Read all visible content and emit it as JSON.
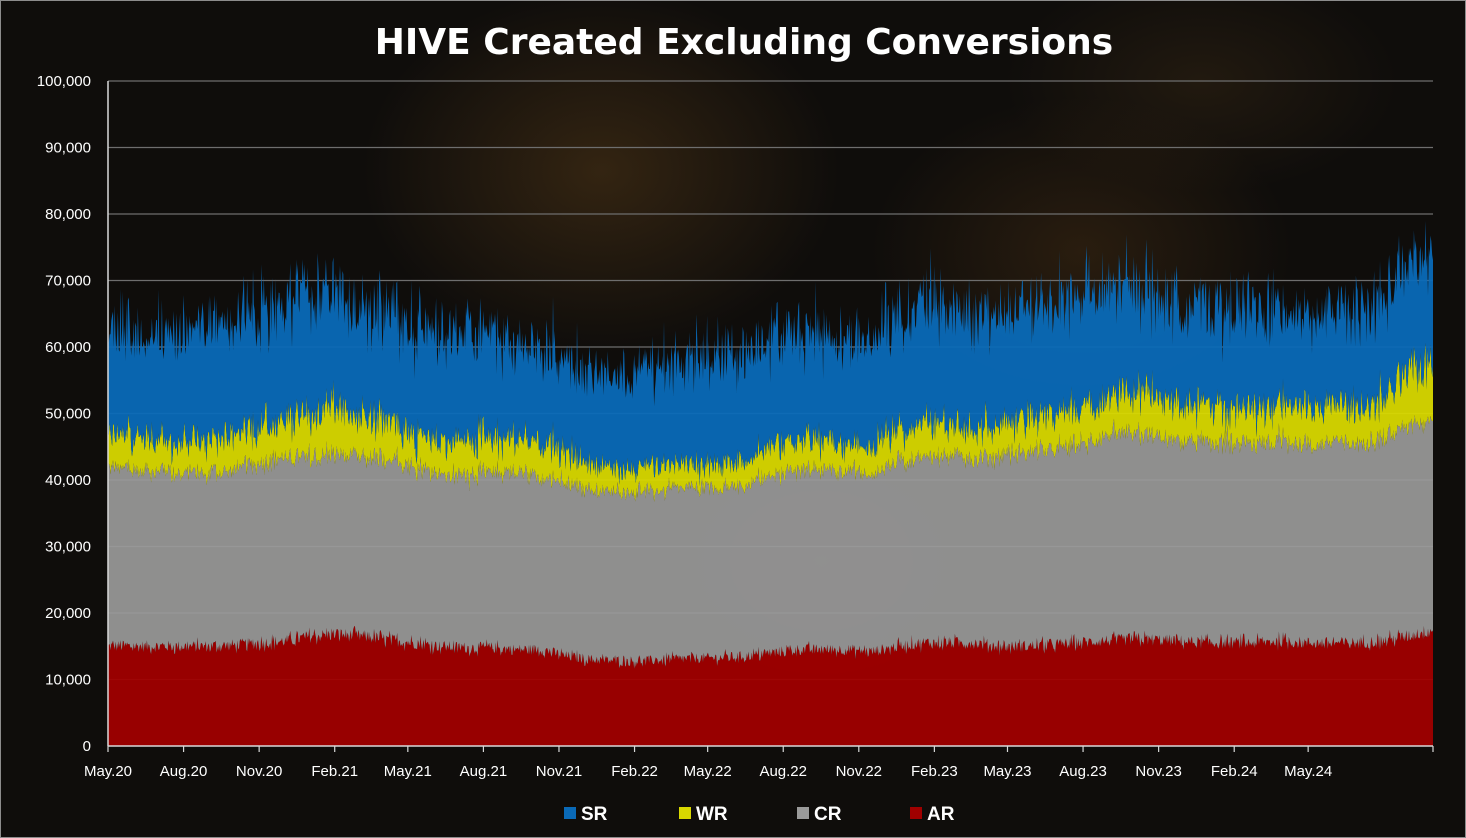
{
  "chart_data": {
    "type": "area",
    "stacked": true,
    "title": "HIVE Created Excluding Conversions",
    "xlabel": "",
    "ylabel": "",
    "ylim": [
      0,
      100000
    ],
    "yticks": [
      0,
      10000,
      20000,
      30000,
      40000,
      50000,
      60000,
      70000,
      80000,
      90000,
      100000
    ],
    "ytick_labels": [
      "0",
      "10,000",
      "20,000",
      "30,000",
      "40,000",
      "50,000",
      "60,000",
      "70,000",
      "80,000",
      "90,000",
      "100,000"
    ],
    "x_start": "2020-05-01",
    "x_end": "2024-09-30",
    "xtick_labels": [
      "May.20",
      "Aug.20",
      "Nov.20",
      "Feb.21",
      "May.21",
      "Aug.21",
      "Nov.21",
      "Feb.22",
      "May.22",
      "Aug.22",
      "Nov.22",
      "Feb.23",
      "May.23",
      "Aug.23",
      "Nov.23",
      "Feb.24",
      "May.24"
    ],
    "grid": true,
    "legend_position": "bottom",
    "note_values": "stacked series values (not cumulative), approximate monthly trend read from gridlines",
    "months": [
      "May.20",
      "Jun.20",
      "Jul.20",
      "Aug.20",
      "Sep.20",
      "Oct.20",
      "Nov.20",
      "Dec.20",
      "Jan.21",
      "Feb.21",
      "Mar.21",
      "Apr.21",
      "May.21",
      "Jun.21",
      "Jul.21",
      "Aug.21",
      "Sep.21",
      "Oct.21",
      "Nov.21",
      "Dec.21",
      "Jan.22",
      "Feb.22",
      "Mar.22",
      "Apr.22",
      "May.22",
      "Jun.22",
      "Jul.22",
      "Aug.22",
      "Sep.22",
      "Oct.22",
      "Nov.22",
      "Dec.22",
      "Jan.23",
      "Feb.23",
      "Mar.23",
      "Apr.23",
      "May.23",
      "Jun.23",
      "Jul.23",
      "Aug.23",
      "Sep.23",
      "Oct.23",
      "Nov.23",
      "Dec.23",
      "Jan.24",
      "Feb.24",
      "Mar.24",
      "Apr.24",
      "May.24",
      "Jun.24",
      "Jul.24",
      "Aug.24",
      "Sep.24"
    ],
    "series": [
      {
        "name": "AR",
        "color": "#a00000",
        "values": [
          15000,
          15000,
          15000,
          15000,
          15000,
          15200,
          15500,
          15800,
          16500,
          16800,
          16500,
          16000,
          15500,
          15000,
          14800,
          14800,
          14500,
          14500,
          13500,
          13000,
          12800,
          12800,
          13000,
          13200,
          13300,
          13500,
          14000,
          14500,
          14500,
          14500,
          14200,
          15000,
          15500,
          15500,
          15500,
          15000,
          15000,
          15200,
          15500,
          15800,
          16000,
          16000,
          15800,
          15500,
          15500,
          15500,
          15800,
          15500,
          15500,
          15500,
          15800,
          16500,
          17500
        ]
      },
      {
        "name": "CR",
        "color": "#9a9a9a",
        "values": [
          27000,
          26500,
          26500,
          26000,
          26000,
          26500,
          27000,
          27500,
          27000,
          27000,
          27000,
          27000,
          26500,
          26000,
          26000,
          26500,
          26500,
          26000,
          26000,
          25500,
          25500,
          25500,
          25500,
          25500,
          25500,
          26000,
          26500,
          27000,
          27000,
          27000,
          26500,
          28000,
          28000,
          28000,
          28000,
          28500,
          29000,
          29500,
          30000,
          30500,
          31000,
          30500,
          30000,
          30000,
          30000,
          30000,
          30000,
          30000,
          30000,
          30000,
          30500,
          31500,
          32000
        ]
      },
      {
        "name": "WR",
        "color": "#d8d800",
        "values": [
          5000,
          5000,
          5000,
          5000,
          5000,
          5000,
          5500,
          6000,
          6500,
          6500,
          6000,
          5500,
          5000,
          5000,
          5000,
          5000,
          5000,
          5000,
          4500,
          4000,
          3500,
          3500,
          3500,
          3500,
          3500,
          4000,
          4500,
          4500,
          4500,
          4000,
          4000,
          5000,
          5000,
          5000,
          4800,
          4800,
          5000,
          5200,
          5500,
          5800,
          6000,
          5800,
          5700,
          5500,
          5500,
          5500,
          5500,
          5500,
          5500,
          5500,
          6000,
          7500,
          9500
        ]
      },
      {
        "name": "SR",
        "color": "#0a6ab8",
        "values": [
          17000,
          15500,
          16000,
          16500,
          17500,
          18000,
          18000,
          18000,
          18000,
          17500,
          17000,
          16500,
          16000,
          16000,
          16000,
          15500,
          15000,
          14500,
          14000,
          13500,
          14000,
          14500,
          15000,
          15500,
          16000,
          16500,
          17000,
          16500,
          16000,
          16000,
          16000,
          17500,
          18000,
          17500,
          17000,
          16500,
          16500,
          16800,
          17000,
          16500,
          15800,
          15500,
          15000,
          15000,
          15000,
          15000,
          14500,
          14000,
          13500,
          14000,
          15000,
          16000,
          16000
        ]
      }
    ]
  }
}
